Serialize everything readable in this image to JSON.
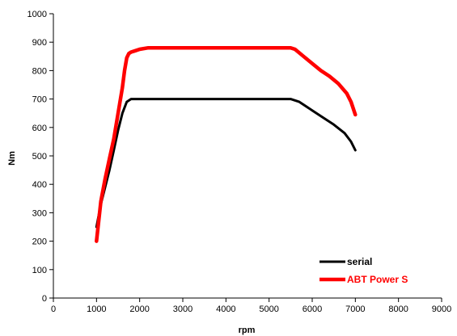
{
  "chart_data": {
    "type": "line",
    "title": "",
    "xlabel": "rpm",
    "ylabel": "Nm",
    "xlim": [
      0,
      9000
    ],
    "ylim": [
      0,
      1000
    ],
    "x_ticks": [
      0,
      1000,
      2000,
      3000,
      4000,
      5000,
      6000,
      7000,
      8000,
      9000
    ],
    "y_ticks": [
      0,
      100,
      200,
      300,
      400,
      500,
      600,
      700,
      800,
      900,
      1000
    ],
    "x_tick_labels": [
      "0",
      "1000",
      "2000",
      "3000",
      "4000",
      "5000",
      "6000",
      "7000",
      "8000",
      "9000"
    ],
    "y_tick_labels": [
      "0",
      "100",
      "200",
      "300",
      "400",
      "500",
      "600",
      "700",
      "800",
      "900",
      "1000"
    ],
    "grid": false,
    "legend_position": "bottom-right",
    "series": [
      {
        "name": "serial",
        "color": "#000000",
        "x": [
          1000,
          1100,
          1200,
          1300,
          1400,
          1500,
          1600,
          1700,
          1800,
          1900,
          2000,
          2500,
          3000,
          3500,
          4000,
          4500,
          5000,
          5500,
          5700,
          6000,
          6250,
          6500,
          6750,
          6900,
          7000
        ],
        "y": [
          250,
          330,
          390,
          450,
          520,
          590,
          650,
          690,
          700,
          700,
          700,
          700,
          700,
          700,
          700,
          700,
          700,
          700,
          690,
          660,
          635,
          610,
          580,
          550,
          520
        ]
      },
      {
        "name": "ABT Power S",
        "color": "#ff0000",
        "x": [
          1000,
          1100,
          1200,
          1300,
          1400,
          1500,
          1600,
          1650,
          1700,
          1750,
          1800,
          1900,
          2000,
          2200,
          2500,
          3000,
          3500,
          4000,
          4500,
          5000,
          5500,
          5600,
          5800,
          6000,
          6200,
          6400,
          6600,
          6800,
          6900,
          7000
        ],
        "y": [
          200,
          340,
          420,
          490,
          560,
          650,
          740,
          800,
          845,
          860,
          865,
          870,
          875,
          880,
          880,
          880,
          880,
          880,
          880,
          880,
          880,
          875,
          850,
          825,
          800,
          780,
          755,
          720,
          690,
          645
        ]
      }
    ]
  }
}
